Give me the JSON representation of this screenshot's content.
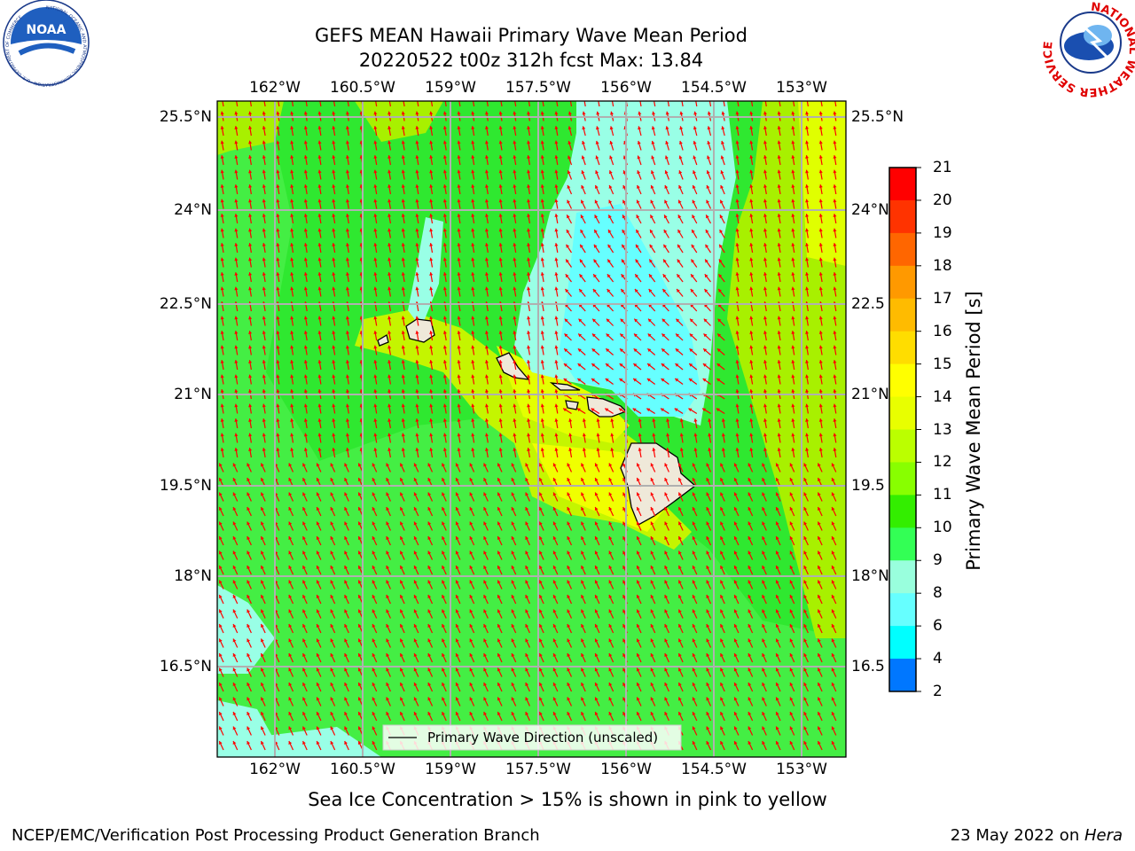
{
  "title": {
    "line1": "GEFS MEAN Hawaii Primary Wave Mean Period",
    "line2": "20220522 t00z 312h fcst   Max: 13.84"
  },
  "logos": {
    "noaa_text": "NOAA",
    "noaa_ring_text": "NATIONAL OCEANIC AND ATMOSPHERIC ADMINISTRATION · U.S. DEPARTMENT OF COMMERCE",
    "nws_ring_text": "NATIONAL WEATHER SERVICE"
  },
  "map": {
    "lon_labels": [
      "162°W",
      "160.5°W",
      "159°W",
      "157.5°W",
      "156°W",
      "154.5°W",
      "153°W"
    ],
    "lat_labels_left": [
      "25.5°N",
      "24°N",
      "22.5°N",
      "21°N",
      "19.5°N",
      "18°N",
      "16.5°N"
    ],
    "lat_labels_right": [
      "25.5°N",
      "24°N",
      "22.5",
      "21°N",
      "19.5",
      "18°N",
      "16.5"
    ],
    "lon_range": [
      -163,
      -152.7
    ],
    "lat_range": [
      15.3,
      25.9
    ],
    "arrow_color": "#ff0000",
    "land_color": "#efe9d9",
    "grid_color": "#b0b0b0",
    "legend_label": "Primary Wave Direction (unscaled)"
  },
  "colorbar": {
    "title": "Primary Wave Mean Period [s]",
    "ticks": [
      "21",
      "20",
      "19",
      "18",
      "17",
      "16",
      "15",
      "14",
      "13",
      "12",
      "11",
      "10",
      "9",
      "8",
      "6",
      "4",
      "2"
    ],
    "colors_top_to_bottom": [
      "#ff0000",
      "#ff3300",
      "#ff6600",
      "#ff9900",
      "#ffbb00",
      "#ffdd00",
      "#ffff00",
      "#e8ff00",
      "#bbff00",
      "#88ff00",
      "#33ee00",
      "#33ff55",
      "#99ffdd",
      "#66ffff",
      "#00ffff",
      "#0077ff",
      "#0000ff"
    ]
  },
  "note": "Sea Ice Concentration > 15% is shown in pink to yellow",
  "footer": {
    "left": "NCEP/EMC/Verification Post Processing Product Generation Branch",
    "right_prefix": "23 May 2022 on ",
    "right_host": "Hera"
  }
}
